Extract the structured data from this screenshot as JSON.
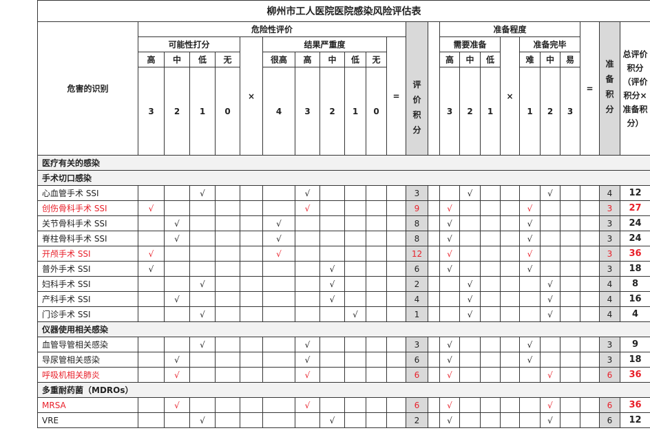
{
  "title": "柳州市工人医院医院感染风险评估表",
  "headers": {
    "hazard": "危害的识别",
    "risk_eval": "危险性评价",
    "possibility": "可能性打分",
    "severity": "结果严重度",
    "eval_score": "评价积分",
    "preparedness": "准备程度",
    "need_prep": "需要准备",
    "prep_done": "准备完毕",
    "prep_score": "准备积分",
    "total": "总评价积分（评价积分×准备积分）",
    "times": "×",
    "equals": "=",
    "possibility_levels": [
      "高",
      "中",
      "低",
      "无"
    ],
    "possibility_values": [
      "3",
      "2",
      "1",
      "0"
    ],
    "severity_levels": [
      "很高",
      "高",
      "中",
      "低",
      "无"
    ],
    "severity_values": [
      "4",
      "3",
      "2",
      "1",
      "0"
    ],
    "need_levels": [
      "高",
      "中",
      "低"
    ],
    "need_values": [
      "3",
      "2",
      "1"
    ],
    "done_levels": [
      "难",
      "中",
      "易"
    ],
    "done_values": [
      "1",
      "2",
      "3"
    ]
  },
  "tick": "√",
  "colors": {
    "highlight": "#e8202a",
    "score_bg": "#d9d9d9",
    "category_bg": "#f2f2f2"
  },
  "sections": [
    {
      "label": "医疗有关的感染",
      "rows": []
    },
    {
      "label": "手术切口感染",
      "rows": [
        {
          "name": "心血管手术 SSI",
          "highlight": false,
          "possibility": 2,
          "severity": 1,
          "eval": "3",
          "need": 1,
          "done": 1,
          "prep": "4",
          "total": "12"
        },
        {
          "name": "创伤骨科手术 SSI",
          "highlight": true,
          "possibility": 0,
          "severity": 1,
          "eval": "9",
          "need": 0,
          "done": 0,
          "prep": "3",
          "total": "27"
        },
        {
          "name": "关节骨科手术 SSI",
          "highlight": false,
          "possibility": 1,
          "severity": 0,
          "eval": "8",
          "need": 0,
          "done": 0,
          "prep": "3",
          "total": "24"
        },
        {
          "name": "脊柱骨科手术 SSI",
          "highlight": false,
          "possibility": 1,
          "severity": 0,
          "eval": "8",
          "need": 0,
          "done": 0,
          "prep": "3",
          "total": "24"
        },
        {
          "name": "开颅手术 SSI",
          "highlight": true,
          "possibility": 0,
          "severity": 0,
          "eval": "12",
          "need": 0,
          "done": 0,
          "prep": "3",
          "total": "36"
        },
        {
          "name": "普外手术 SSI",
          "highlight": false,
          "possibility": 0,
          "severity": 2,
          "eval": "6",
          "need": 0,
          "done": 0,
          "prep": "3",
          "total": "18"
        },
        {
          "name": "妇科手术 SSI",
          "highlight": false,
          "possibility": 2,
          "severity": 2,
          "eval": "2",
          "need": 1,
          "done": 1,
          "prep": "4",
          "total": "8"
        },
        {
          "name": "产科手术 SSI",
          "highlight": false,
          "possibility": 1,
          "severity": 2,
          "eval": "4",
          "need": 1,
          "done": 1,
          "prep": "4",
          "total": "16"
        },
        {
          "name": "门诊手术 SSI",
          "highlight": false,
          "possibility": 2,
          "severity": 3,
          "eval": "1",
          "need": 1,
          "done": 1,
          "prep": "4",
          "total": "4"
        }
      ]
    },
    {
      "label": "仪器使用相关感染",
      "rows": [
        {
          "name": "血管导管相关感染",
          "highlight": false,
          "possibility": 2,
          "severity": 1,
          "eval": "3",
          "need": 0,
          "done": 0,
          "prep": "3",
          "total": "9"
        },
        {
          "name": "导尿管相关感染",
          "highlight": false,
          "possibility": 1,
          "severity": 1,
          "eval": "6",
          "need": 0,
          "done": 0,
          "prep": "3",
          "total": "18"
        },
        {
          "name": "呼吸机相关肺炎",
          "highlight": true,
          "possibility": 1,
          "severity": 1,
          "eval": "6",
          "need": 0,
          "done": 1,
          "prep": "6",
          "total": "36"
        }
      ]
    },
    {
      "label": "多重耐药菌（MDROs）",
      "rows": [
        {
          "name": "MRSA",
          "highlight": true,
          "possibility": 1,
          "severity": 1,
          "eval": "6",
          "need": 0,
          "done": 1,
          "prep": "6",
          "total": "36"
        },
        {
          "name": "VRE",
          "highlight": false,
          "possibility": 2,
          "severity": 2,
          "eval": "2",
          "need": 0,
          "done": 1,
          "prep": "6",
          "total": "12"
        }
      ]
    }
  ]
}
